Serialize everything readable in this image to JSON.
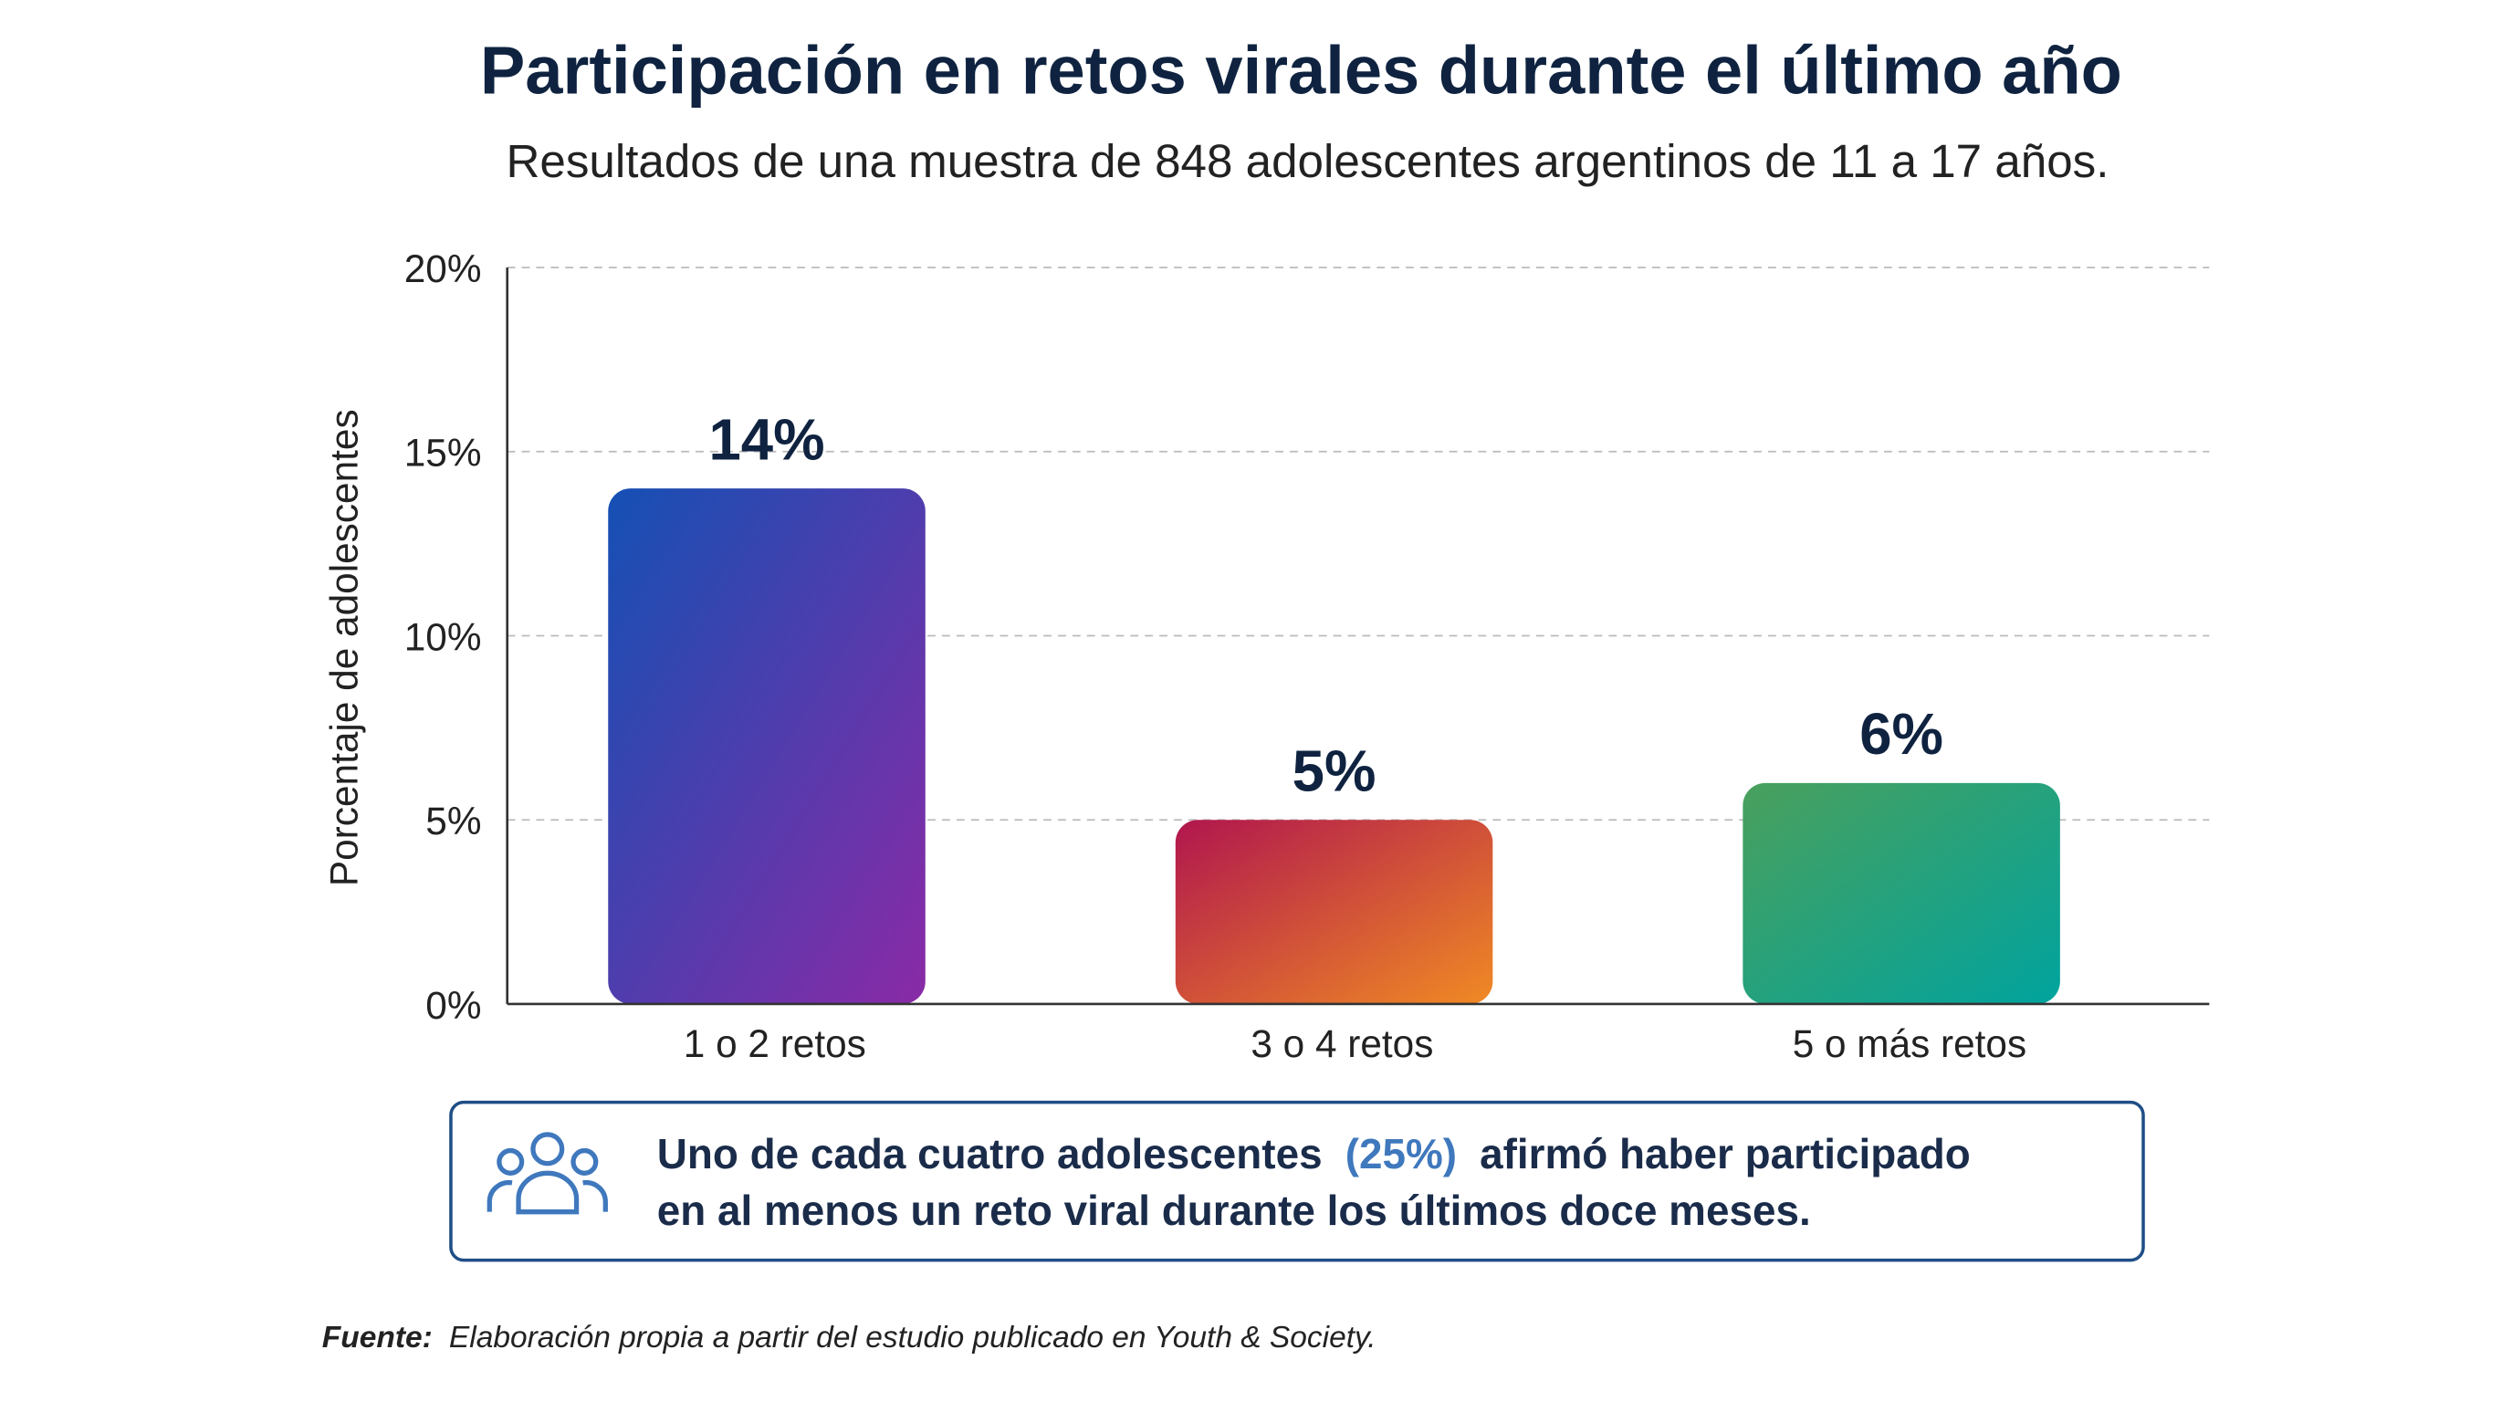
{
  "chart_data": {
    "type": "bar",
    "title": "Participación en retos virales durante el último año",
    "subtitle": "Resultados de una muestra de 848 adolescentes argentinos de 11 a 17 años.",
    "y_label": "Porcentaje de adolescentes",
    "categories": [
      "1 o 2 retos",
      "3 o 4 retos",
      "5 o más retos"
    ],
    "values": [
      14,
      5,
      6
    ],
    "value_labels": [
      "14%",
      "5%",
      "6%"
    ],
    "colors": [
      [
        "#1450b4",
        "#8a2aa6"
      ],
      [
        "#b0164e",
        "#f08a24"
      ],
      [
        "#4aa05c",
        "#00a39e"
      ]
    ],
    "ylim": [
      0,
      20
    ],
    "yticks": [
      {
        "value": 0,
        "label": "0%"
      },
      {
        "value": 5,
        "label": "5%"
      },
      {
        "value": 10,
        "label": "10%"
      },
      {
        "value": 15,
        "label": "15%"
      },
      {
        "value": 20,
        "label": "20%"
      }
    ],
    "grid": true
  },
  "callout": {
    "lead": "Uno de cada cuatro adolescentes",
    "highlight": "(25%)",
    "rest": "afirmó haber participado",
    "line2": "en al menos un reto viral durante los últimos doce meses."
  },
  "source": {
    "label": "Fuente:",
    "text": "Elaboración propia a partir del estudio publicado en Youth & Society."
  }
}
